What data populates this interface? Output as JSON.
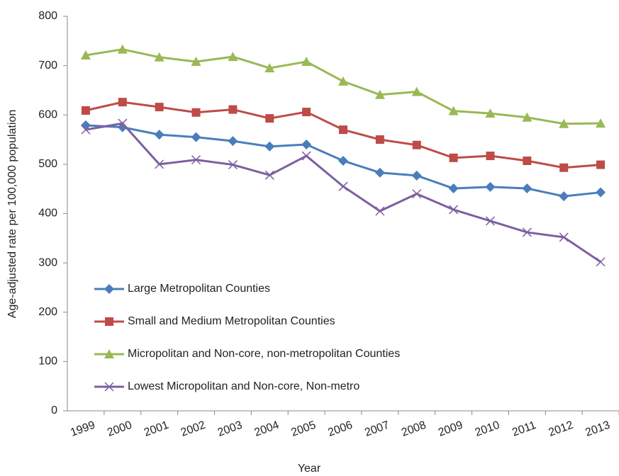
{
  "chart_data": {
    "type": "line",
    "x_label": "Year",
    "y_label": "Age-adjusted rate per 100,000 population",
    "categories": [
      "1999",
      "2000",
      "2001",
      "2002",
      "2003",
      "2004",
      "2005",
      "2006",
      "2007",
      "2008",
      "2009",
      "2010",
      "2011",
      "2012",
      "2013"
    ],
    "ylim": [
      0,
      800
    ],
    "yticks": [
      0,
      100,
      200,
      300,
      400,
      500,
      600,
      700,
      800
    ],
    "series": [
      {
        "name": "Large Metropolitan Counties",
        "color": "#4a7ebb",
        "marker": "diamond",
        "values": [
          579,
          575,
          560,
          555,
          547,
          536,
          540,
          507,
          483,
          477,
          451,
          454,
          451,
          435,
          443
        ]
      },
      {
        "name": "Small and Medium Metropolitan Counties",
        "color": "#be4b48",
        "marker": "square",
        "values": [
          609,
          626,
          616,
          605,
          611,
          593,
          606,
          570,
          550,
          539,
          513,
          517,
          507,
          493,
          499
        ]
      },
      {
        "name": "Micropolitan and Non-core, non-metropolitan Counties",
        "color": "#98b954",
        "marker": "triangle",
        "values": [
          721,
          733,
          717,
          708,
          718,
          695,
          708,
          668,
          641,
          647,
          608,
          603,
          595,
          582,
          583
        ]
      },
      {
        "name": "Lowest Micropolitan and Non-core, Non-metro",
        "color": "#7d5fa0",
        "marker": "x",
        "values": [
          570,
          583,
          500,
          509,
          499,
          478,
          517,
          455,
          405,
          440,
          408,
          385,
          362,
          352,
          302
        ]
      }
    ]
  }
}
